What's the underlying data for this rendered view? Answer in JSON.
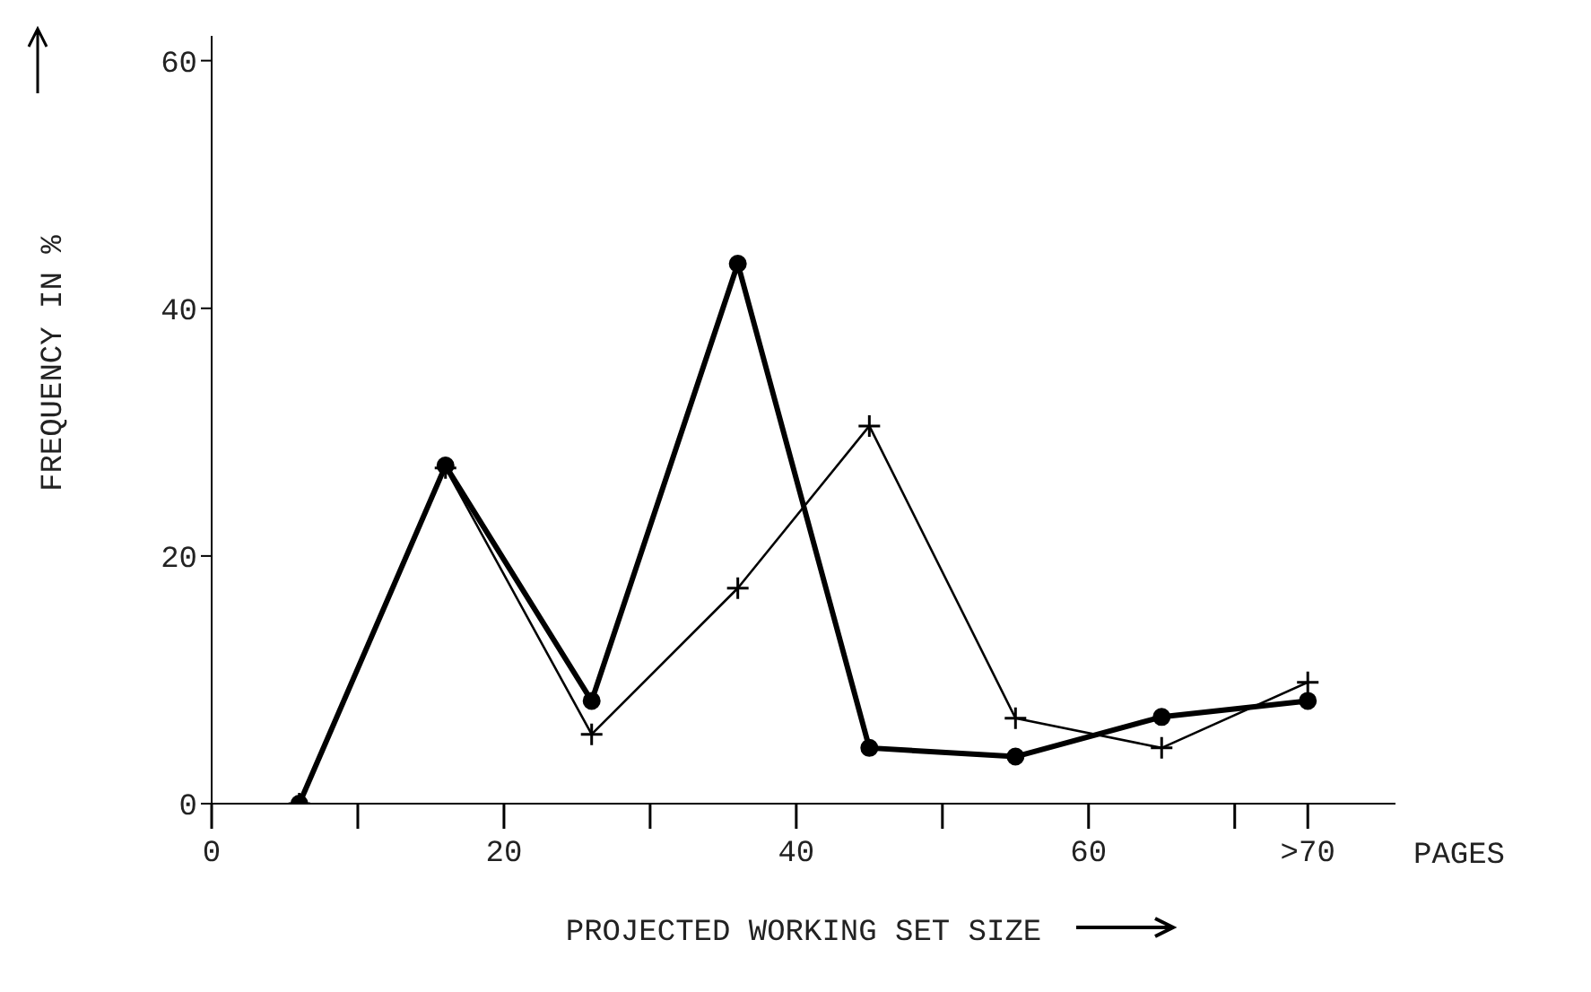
{
  "chart_data": {
    "type": "line",
    "xlabel": "PROJECTED WORKING SET SIZE",
    "ylabel": "FREQUENCY IN %",
    "annotations": [
      "PAGES"
    ],
    "x": [
      6,
      16,
      26,
      36,
      45,
      55,
      65,
      75
    ],
    "xlim": [
      0,
      81
    ],
    "xticks": [
      0,
      {
        "value": 10,
        "label": null
      },
      20,
      {
        "value": 30,
        "label": null
      },
      40,
      {
        "value": 50,
        "label": null
      },
      60,
      {
        "value": 70,
        "label": null
      },
      {
        "value": 75,
        "label": ">70"
      }
    ],
    "ylim": [
      0,
      62
    ],
    "yticks": [
      0,
      20,
      40,
      60
    ],
    "grid": false,
    "legend": false,
    "series": [
      {
        "color": "#000000",
        "marker": "circle",
        "values": [
          0,
          27.3,
          8.3,
          43.6,
          4.5,
          3.8,
          7,
          8.3
        ]
      },
      {
        "color": "#000000",
        "marker": "cross",
        "values": [
          0,
          27.1,
          5.6,
          17.4,
          30.5,
          6.9,
          4.5,
          9.8
        ]
      }
    ]
  }
}
